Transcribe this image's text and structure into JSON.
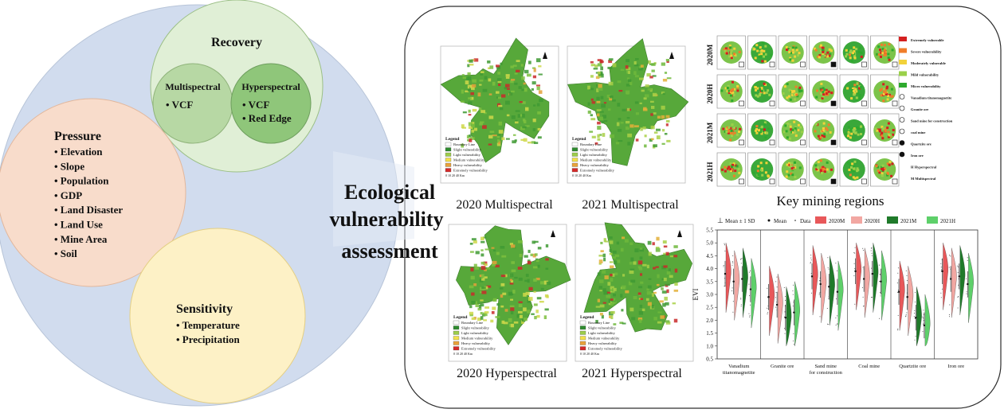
{
  "center_title": [
    "Ecological",
    "vulnerability",
    "assessment"
  ],
  "recovery": {
    "title": "Recovery",
    "multispectral": {
      "title": "Multispectral",
      "items": [
        "• VCF"
      ]
    },
    "hyperspectral": {
      "title": "Hyperspectral",
      "items": [
        "• VCF",
        "• Red Edge"
      ]
    }
  },
  "pressure": {
    "title": "Pressure",
    "items": [
      "• Elevation",
      "• Slope",
      "• Population",
      "• GDP",
      "• Land Disaster",
      "• Land Use",
      "• Mine Area",
      "• Soil"
    ]
  },
  "sensitivity": {
    "title": "Sensitivity",
    "items": [
      "• Temperature",
      "• Precipitation"
    ]
  },
  "maps": [
    {
      "caption": "2020 Multispectral"
    },
    {
      "caption": "2021 Multispectral"
    },
    {
      "caption": "2020 Hyperspectral"
    },
    {
      "caption": "2021 Hyperspectral"
    }
  ],
  "map_legend": {
    "title": "Legend",
    "items": [
      "Boundary Line",
      "Slight vulnerability",
      "Light vulnerability",
      "Medium vulnerability",
      "Heavy vulnerability",
      "Extremely vulnerability"
    ],
    "colors": [
      "#ffffff",
      "#2e8b2e",
      "#9ccc4a",
      "#f2e04a",
      "#e8a23a",
      "#d42a2a"
    ],
    "scale": "0   10   20        40 Km"
  },
  "key_regions": {
    "caption": "Key mining regions",
    "row_labels": [
      "2020M",
      "2020H",
      "2021M",
      "2021H"
    ],
    "legend": [
      "Extremely vulnerable",
      "Severe vulnerability",
      "Moderately vulnerable",
      "Mild vulnerability",
      "Micro vulnerability",
      "Vanadium titanomagnetite",
      "Granite ore",
      "Sand mine for construction",
      "coal mine",
      "Quartzite ore",
      "Iron ore",
      "H   Hyperspectral",
      "M   Multispectral"
    ],
    "legend_colors": [
      "#d42020",
      "#f07d2a",
      "#f2d23a",
      "#9ad04a",
      "#2eaa2e"
    ]
  },
  "chart_data": {
    "type": "violin",
    "legend": [
      "Mean ± 1 SD",
      "Mean",
      "Data",
      "2020M",
      "2020H",
      "2021M",
      "2021H"
    ],
    "series_colors": [
      "#e8585a",
      "#f2a7a2",
      "#1f7a2a",
      "#5ed06a"
    ],
    "ylabel": "EVI",
    "ylim": [
      0.5,
      5.5
    ],
    "yticks": [
      0.5,
      1.0,
      1.5,
      2.0,
      2.5,
      3.0,
      3.5,
      4.0,
      4.5,
      5.0,
      5.5
    ],
    "categories": [
      "Vanadium titanomagnetite",
      "Granite ore",
      "Sand mine for construction",
      "Coal mine",
      "Quartzite ore",
      "Iron ore"
    ],
    "series": [
      {
        "name": "2020M",
        "mean": [
          3.8,
          2.9,
          3.7,
          3.9,
          3.1,
          3.9
        ]
      },
      {
        "name": "2020H",
        "mean": [
          3.5,
          2.6,
          3.4,
          3.6,
          2.9,
          3.6
        ]
      },
      {
        "name": "2021M",
        "mean": [
          3.6,
          2.1,
          3.3,
          3.8,
          2.1,
          3.7
        ]
      },
      {
        "name": "2021H",
        "mean": [
          3.2,
          2.3,
          3.1,
          3.5,
          1.8,
          3.4
        ]
      }
    ]
  }
}
